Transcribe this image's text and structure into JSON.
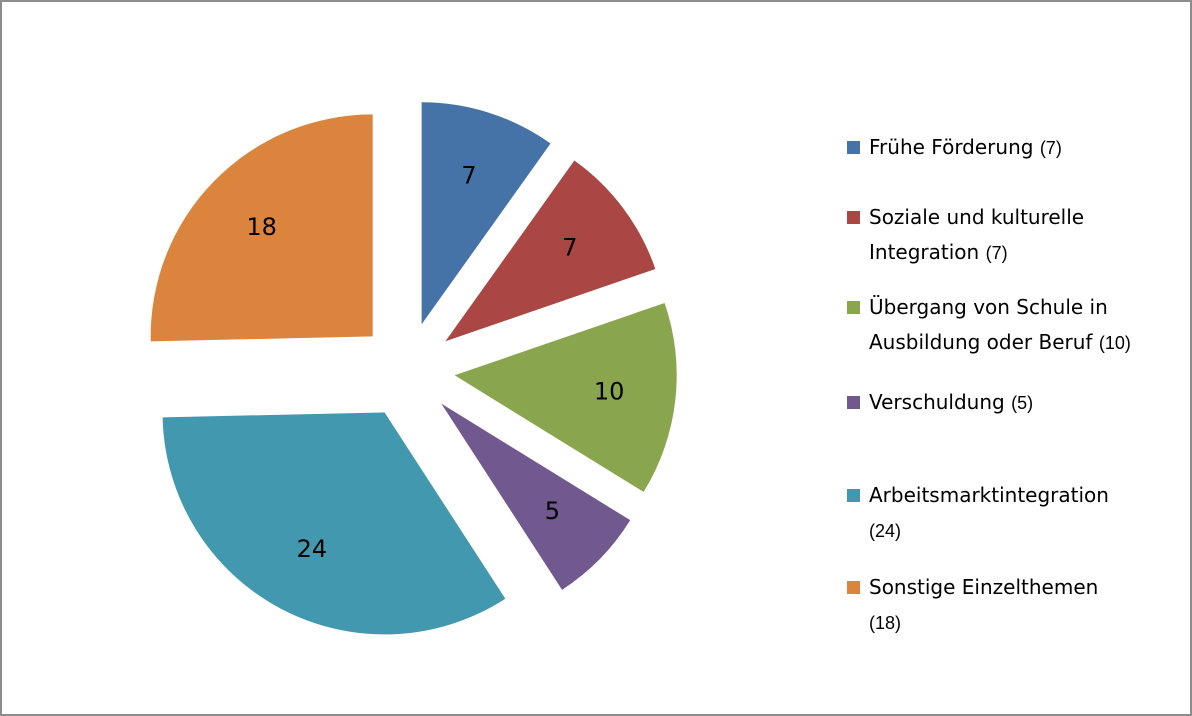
{
  "chart_data": {
    "type": "pie",
    "categories": [
      "Frühe Förderung",
      "Soziale und kulturelle Integration",
      "Übergang von Schule in Ausbildung oder Beruf",
      "Verschuldung",
      "Arbeitsmarktintegration",
      "Sonstige Einzelthemen"
    ],
    "values": [
      7,
      7,
      10,
      5,
      24,
      18
    ],
    "legend_counts": [
      "(7)",
      "(7)",
      "(10)",
      "(5)",
      "(24)",
      "(18)"
    ],
    "colors": [
      "#4572a7",
      "#aa4643",
      "#89a54e",
      "#71588f",
      "#4198af",
      "#db843d"
    ],
    "legend": "right"
  }
}
